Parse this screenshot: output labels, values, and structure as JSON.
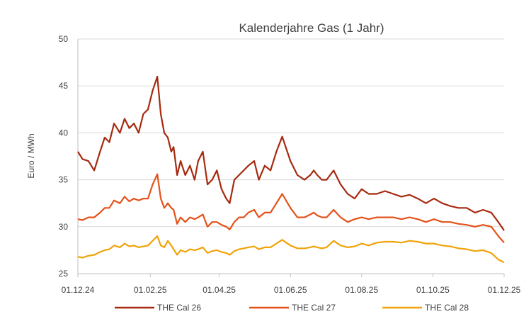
{
  "chart_data": {
    "type": "line",
    "title": "Kalenderjahre Gas (1 Jahr)",
    "xlabel": "",
    "ylabel": "Euro / MWh",
    "ylim": [
      25,
      50
    ],
    "yticks": [
      25,
      30,
      35,
      40,
      45,
      50
    ],
    "xticks": [
      "01.12.24",
      "01.02.25",
      "01.04.25",
      "01.06.25",
      "01.08.25",
      "01.10.25",
      "01.12.25"
    ],
    "grid": "horizontal",
    "legend": "bottom",
    "series": [
      {
        "name": "THE Cal 26",
        "color": "#a52a0f",
        "x": [
          "01.12.24",
          "05.12.24",
          "10.12.24",
          "15.12.24",
          "20.12.24",
          "24.12.24",
          "28.12.24",
          "01.01.25",
          "06.01.25",
          "10.01.25",
          "14.01.25",
          "18.01.25",
          "22.01.25",
          "26.01.25",
          "30.01.25",
          "03.02.25",
          "07.02.25",
          "10.02.25",
          "13.02.25",
          "16.02.25",
          "19.02.25",
          "21.02.25",
          "24.02.25",
          "27.02.25",
          "03.03.25",
          "07.03.25",
          "11.03.25",
          "14.03.25",
          "18.03.25",
          "22.03.25",
          "26.03.25",
          "30.03.25",
          "03.04.25",
          "07.04.25",
          "10.04.25",
          "14.04.25",
          "18.04.25",
          "22.04.25",
          "26.04.25",
          "01.05.25",
          "05.05.25",
          "10.05.25",
          "15.05.25",
          "20.05.25",
          "25.05.25",
          "01.06.25",
          "07.06.25",
          "13.06.25",
          "18.06.25",
          "21.06.25",
          "24.06.25",
          "28.06.25",
          "02.07.25",
          "08.07.25",
          "14.07.25",
          "20.07.25",
          "26.07.25",
          "01.08.25",
          "07.08.25",
          "14.08.25",
          "21.08.25",
          "28.08.25",
          "04.09.25",
          "11.09.25",
          "18.09.25",
          "25.09.25",
          "02.10.25",
          "09.10.25",
          "16.10.25",
          "23.10.25",
          "30.10.25",
          "06.11.25",
          "13.11.25",
          "20.11.25",
          "26.11.25",
          "01.12.25"
        ],
        "values": [
          38.0,
          37.2,
          37.0,
          36.0,
          38.0,
          39.5,
          39.0,
          41.0,
          40.0,
          41.5,
          40.5,
          41.0,
          40.0,
          42.0,
          42.5,
          44.5,
          46.0,
          42.0,
          40.0,
          39.5,
          38.0,
          38.5,
          35.5,
          37.0,
          35.5,
          36.5,
          35.0,
          37.0,
          38.0,
          34.5,
          35.0,
          36.0,
          34.0,
          33.0,
          32.5,
          35.0,
          35.5,
          36.0,
          36.5,
          37.0,
          35.0,
          36.5,
          36.0,
          38.0,
          39.6,
          37.0,
          35.5,
          35.0,
          35.5,
          36.0,
          35.5,
          35.0,
          35.0,
          36.0,
          34.5,
          33.5,
          33.0,
          34.0,
          33.5,
          33.5,
          33.8,
          33.5,
          33.2,
          33.4,
          33.0,
          32.5,
          33.0,
          32.5,
          32.2,
          32.0,
          32.0,
          31.5,
          31.8,
          31.5,
          30.5,
          29.6
        ]
      },
      {
        "name": "THE Cal 27",
        "color": "#e4521a",
        "x": [
          "01.12.24",
          "05.12.24",
          "10.12.24",
          "15.12.24",
          "20.12.24",
          "24.12.24",
          "28.12.24",
          "01.01.25",
          "06.01.25",
          "10.01.25",
          "14.01.25",
          "18.01.25",
          "22.01.25",
          "26.01.25",
          "30.01.25",
          "03.02.25",
          "07.02.25",
          "10.02.25",
          "13.02.25",
          "16.02.25",
          "19.02.25",
          "21.02.25",
          "24.02.25",
          "27.02.25",
          "03.03.25",
          "07.03.25",
          "11.03.25",
          "14.03.25",
          "18.03.25",
          "22.03.25",
          "26.03.25",
          "30.03.25",
          "03.04.25",
          "07.04.25",
          "10.04.25",
          "14.04.25",
          "18.04.25",
          "22.04.25",
          "26.04.25",
          "01.05.25",
          "05.05.25",
          "10.05.25",
          "15.05.25",
          "20.05.25",
          "25.05.25",
          "01.06.25",
          "07.06.25",
          "13.06.25",
          "18.06.25",
          "21.06.25",
          "24.06.25",
          "28.06.25",
          "02.07.25",
          "08.07.25",
          "14.07.25",
          "20.07.25",
          "26.07.25",
          "01.08.25",
          "07.08.25",
          "14.08.25",
          "21.08.25",
          "28.08.25",
          "04.09.25",
          "11.09.25",
          "18.09.25",
          "25.09.25",
          "02.10.25",
          "09.10.25",
          "16.10.25",
          "23.10.25",
          "30.10.25",
          "06.11.25",
          "13.11.25",
          "20.11.25",
          "26.11.25",
          "01.12.25"
        ],
        "values": [
          30.8,
          30.7,
          31.0,
          31.0,
          31.5,
          32.0,
          32.0,
          32.8,
          32.5,
          33.2,
          32.7,
          33.0,
          32.8,
          33.0,
          33.0,
          34.5,
          35.6,
          33.0,
          32.0,
          32.5,
          32.0,
          31.8,
          30.3,
          31.0,
          30.5,
          31.0,
          30.8,
          31.0,
          31.3,
          30.0,
          30.5,
          30.5,
          30.2,
          30.0,
          29.7,
          30.5,
          31.0,
          31.0,
          31.5,
          31.8,
          31.0,
          31.5,
          31.5,
          32.5,
          33.5,
          32.0,
          31.0,
          31.0,
          31.3,
          31.5,
          31.2,
          31.0,
          31.0,
          31.8,
          31.0,
          30.5,
          30.8,
          31.0,
          30.8,
          31.0,
          31.0,
          31.0,
          30.8,
          31.0,
          30.8,
          30.5,
          30.8,
          30.5,
          30.5,
          30.3,
          30.2,
          30.0,
          30.2,
          30.0,
          29.0,
          28.3
        ]
      },
      {
        "name": "THE Cal 28",
        "color": "#f0a30a",
        "x": [
          "01.12.24",
          "05.12.24",
          "10.12.24",
          "15.12.24",
          "20.12.24",
          "24.12.24",
          "28.12.24",
          "01.01.25",
          "06.01.25",
          "10.01.25",
          "14.01.25",
          "18.01.25",
          "22.01.25",
          "26.01.25",
          "30.01.25",
          "03.02.25",
          "07.02.25",
          "10.02.25",
          "13.02.25",
          "16.02.25",
          "19.02.25",
          "21.02.25",
          "24.02.25",
          "27.02.25",
          "03.03.25",
          "07.03.25",
          "11.03.25",
          "14.03.25",
          "18.03.25",
          "22.03.25",
          "26.03.25",
          "30.03.25",
          "03.04.25",
          "07.04.25",
          "10.04.25",
          "14.04.25",
          "18.04.25",
          "22.04.25",
          "26.04.25",
          "01.05.25",
          "05.05.25",
          "10.05.25",
          "15.05.25",
          "20.05.25",
          "25.05.25",
          "01.06.25",
          "07.06.25",
          "13.06.25",
          "18.06.25",
          "21.06.25",
          "24.06.25",
          "28.06.25",
          "02.07.25",
          "08.07.25",
          "14.07.25",
          "20.07.25",
          "26.07.25",
          "01.08.25",
          "07.08.25",
          "14.08.25",
          "21.08.25",
          "28.08.25",
          "04.09.25",
          "11.09.25",
          "18.09.25",
          "25.09.25",
          "02.10.25",
          "09.10.25",
          "16.10.25",
          "23.10.25",
          "30.10.25",
          "06.11.25",
          "13.11.25",
          "20.11.25",
          "26.11.25",
          "01.12.25"
        ],
        "values": [
          26.8,
          26.7,
          26.9,
          27.0,
          27.3,
          27.5,
          27.6,
          28.0,
          27.8,
          28.2,
          27.9,
          28.0,
          27.8,
          27.9,
          28.0,
          28.5,
          29.0,
          28.0,
          27.8,
          28.5,
          28.0,
          27.6,
          27.0,
          27.5,
          27.3,
          27.6,
          27.5,
          27.6,
          27.8,
          27.2,
          27.4,
          27.5,
          27.3,
          27.2,
          27.0,
          27.4,
          27.6,
          27.7,
          27.8,
          27.9,
          27.6,
          27.8,
          27.8,
          28.2,
          28.6,
          28.0,
          27.7,
          27.7,
          27.8,
          27.9,
          27.8,
          27.7,
          27.8,
          28.5,
          28.0,
          27.8,
          27.9,
          28.2,
          28.0,
          28.3,
          28.4,
          28.4,
          28.3,
          28.5,
          28.4,
          28.2,
          28.2,
          28.0,
          27.9,
          27.7,
          27.6,
          27.4,
          27.5,
          27.2,
          26.5,
          26.2
        ]
      }
    ]
  }
}
